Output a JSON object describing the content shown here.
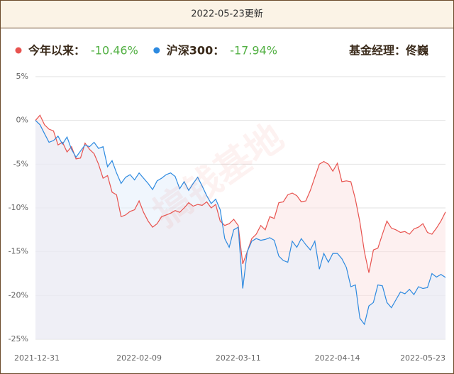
{
  "chart_data": {
    "type": "line",
    "title": "2022-05-23更新",
    "annotation": "基金经理：佟巍",
    "watermark": "搞钱基地",
    "categories": [
      "2021-12-31",
      null,
      null,
      null,
      null,
      null,
      null,
      null,
      null,
      null,
      null,
      null,
      null,
      null,
      null,
      null,
      null,
      null,
      null,
      null,
      null,
      null,
      null,
      "2022-02-09",
      null,
      null,
      null,
      null,
      null,
      null,
      null,
      null,
      null,
      null,
      null,
      null,
      null,
      null,
      null,
      null,
      null,
      null,
      null,
      null,
      null,
      "2022-03-11",
      null,
      null,
      null,
      null,
      null,
      null,
      null,
      null,
      null,
      null,
      null,
      null,
      null,
      null,
      null,
      null,
      null,
      null,
      null,
      null,
      null,
      "2022-04-14",
      null,
      null,
      null,
      null,
      null,
      null,
      null,
      null,
      null,
      null,
      null,
      null,
      null,
      null,
      null,
      null,
      null,
      null,
      null,
      null,
      null,
      null,
      null,
      "2022-05-23"
    ],
    "series": [
      {
        "name": "今年以来：",
        "value_label": "-10.46%",
        "color": "#e8534f",
        "fill": "#fbe3e3",
        "values": [
          0,
          0.6,
          -0.5,
          -1.0,
          -1.2,
          -2.8,
          -2.5,
          -3.6,
          -3.0,
          -4.4,
          -4.3,
          -2.6,
          -3.3,
          -3.8,
          -5.0,
          -6.6,
          -6.3,
          -8.2,
          -8.5,
          -11.0,
          -10.8,
          -10.4,
          -10.2,
          -9.2,
          -10.5,
          -11.5,
          -12.2,
          -11.8,
          -11.0,
          -10.8,
          -10.6,
          -10.3,
          -10.5,
          -10.0,
          -9.4,
          -9.8,
          -9.6,
          -9.7,
          -9.3,
          -10.0,
          -9.6,
          -11.5,
          -12.0,
          -11.8,
          -11.3,
          -12.0,
          -16.4,
          -15.0,
          -13.5,
          -13.0,
          -12.0,
          -12.5,
          -11.0,
          -11.2,
          -9.4,
          -9.3,
          -8.5,
          -8.3,
          -8.6,
          -9.3,
          -9.2,
          -8.0,
          -6.5,
          -5.0,
          -4.7,
          -5.0,
          -5.8,
          -4.9,
          -7.0,
          -6.9,
          -7.0,
          -9.0,
          -11.6,
          -15.0,
          -17.4,
          -14.8,
          -14.6,
          -13.0,
          -11.5,
          -12.3,
          -12.5,
          -12.8,
          -12.7,
          -13.0,
          -12.4,
          -12.2,
          -11.8,
          -12.8,
          -13.0,
          -12.3,
          -11.5,
          -10.46
        ]
      },
      {
        "name": "沪深300：",
        "value_label": "-17.94%",
        "color": "#2d8ae0",
        "fill": "#e3eefb",
        "values": [
          0,
          -0.5,
          -1.5,
          -2.5,
          -2.3,
          -1.8,
          -2.7,
          -1.9,
          -3.3,
          -4.2,
          -3.5,
          -2.8,
          -3.0,
          -2.5,
          -3.2,
          -3.0,
          -5.3,
          -4.6,
          -6.0,
          -7.2,
          -6.5,
          -6.2,
          -6.8,
          -6.0,
          -6.6,
          -7.2,
          -7.9,
          -6.9,
          -6.6,
          -6.2,
          -6.0,
          -6.4,
          -7.8,
          -7.0,
          -8.0,
          -7.2,
          -6.5,
          -7.5,
          -8.6,
          -9.5,
          -9.0,
          -10.2,
          -13.5,
          -14.5,
          -12.5,
          -12.2,
          -19.2,
          -15.0,
          -13.8,
          -13.5,
          -13.7,
          -13.6,
          -13.4,
          -13.7,
          -15.5,
          -16.0,
          -16.2,
          -13.8,
          -14.5,
          -13.5,
          -14.2,
          -14.8,
          -13.8,
          -17.0,
          -15.2,
          -16.2,
          -15.2,
          -15.2,
          -15.8,
          -16.8,
          -19.0,
          -18.8,
          -22.6,
          -23.3,
          -21.2,
          -20.8,
          -18.8,
          -18.9,
          -20.8,
          -21.4,
          -20.5,
          -19.6,
          -19.8,
          -19.3,
          -19.9,
          -19.0,
          -19.2,
          -19.1,
          -17.5,
          -17.9,
          -17.6,
          -17.94
        ]
      }
    ],
    "ylim": [
      -25,
      5
    ],
    "yticks": [
      {
        "value": -25,
        "label": "-25%"
      },
      {
        "value": -20,
        "label": "-20%"
      },
      {
        "value": -15,
        "label": "-15%"
      },
      {
        "value": -10,
        "label": "-10%"
      },
      {
        "value": -5,
        "label": "-5%"
      },
      {
        "value": 0,
        "label": "0%"
      },
      {
        "value": 5,
        "label": "5%"
      }
    ],
    "grid": true,
    "value_color": "#52b043"
  }
}
